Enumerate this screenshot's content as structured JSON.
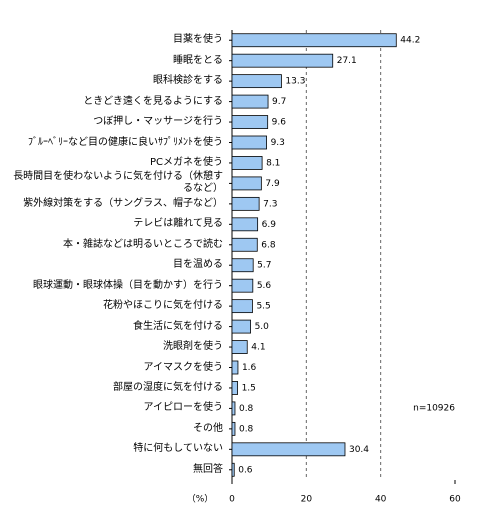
{
  "chart_data": {
    "type": "bar",
    "orientation": "horizontal",
    "categories": [
      "目薬を使う",
      "睡眠をとる",
      "眼科検診をする",
      "ときどき遠くを見るようにする",
      "つぼ押し・マッサージを行う",
      "ﾌﾞﾙｰﾍﾞﾘｰなど目の健康に良いｻﾌﾟﾘﾒﾝﾄを使う",
      "PCメガネを使う",
      "長時間目を使わないように気を付ける（休憩するなど）",
      "紫外線対策をする（サングラス、帽子など）",
      "テレビは離れて見る",
      "本・雑誌などは明るいところで読む",
      "目を温める",
      "眼球運動・眼球体操（目を動かす）を行う",
      "花粉やほこりに気を付ける",
      "食生活に気を付ける",
      "洗眼剤を使う",
      "アイマスクを使う",
      "部屋の湿度に気を付ける",
      "アイピローを使う",
      "その他",
      "特に何もしていない",
      "無回答"
    ],
    "values": [
      44.2,
      27.1,
      13.3,
      9.7,
      9.6,
      9.3,
      8.1,
      7.9,
      7.3,
      6.9,
      6.8,
      5.7,
      5.6,
      5.5,
      5.0,
      4.1,
      1.6,
      1.5,
      0.8,
      0.8,
      30.4,
      0.6
    ],
    "value_labels": [
      "44.2",
      "27.1",
      "13.3",
      "9.7",
      "9.6",
      "9.3",
      "8.1",
      "7.9",
      "7.3",
      "6.9",
      "6.8",
      "5.7",
      "5.6",
      "5.5",
      "5.0",
      "4.1",
      "1.6",
      "1.5",
      "0.8",
      "0.8",
      "30.4",
      "0.6"
    ],
    "color": "#9ec8f2",
    "xlim": [
      0,
      60
    ],
    "xticks": [
      0,
      20,
      40,
      60
    ],
    "grid": true,
    "x_label": "（%）",
    "annotation": "n=10926"
  }
}
